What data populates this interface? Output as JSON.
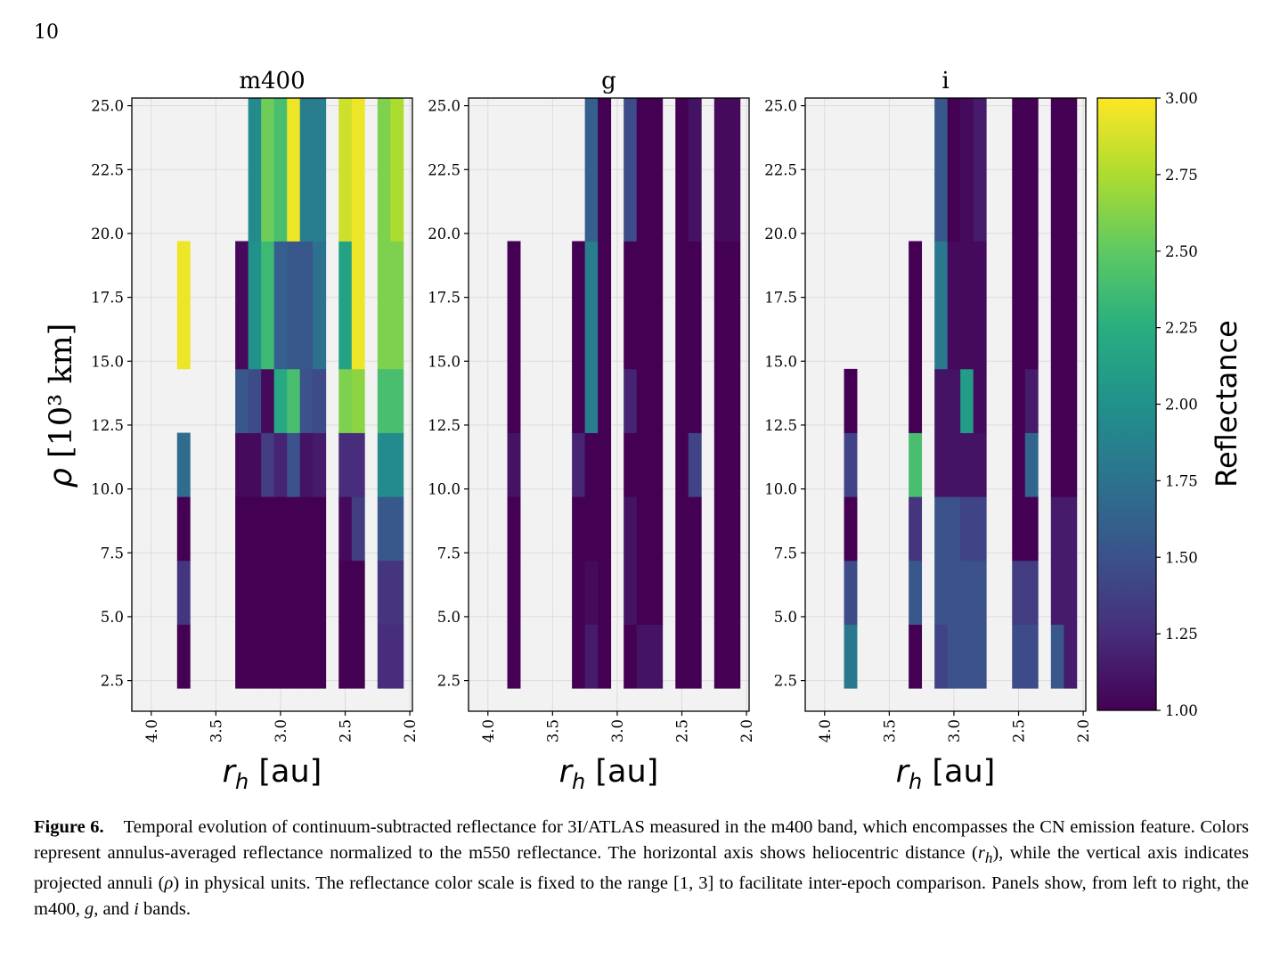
{
  "page_number": "10",
  "chart_data": {
    "type": "heatmap",
    "colorbar": {
      "label": "Reflectance",
      "min": 1.0,
      "max": 3.0,
      "ticks": [
        1.0,
        1.25,
        1.5,
        1.75,
        2.0,
        2.25,
        2.5,
        2.75,
        3.0
      ],
      "tick_labels": [
        "1.00",
        "1.25",
        "1.50",
        "1.75",
        "2.00",
        "2.25",
        "2.50",
        "2.75",
        "3.00"
      ],
      "colormap": "viridis"
    },
    "xlabel": "r_h [au]",
    "ylabel": "ρ [10³ km]",
    "x_range": [
      4.15,
      1.98
    ],
    "y_range": [
      1.3,
      25.3
    ],
    "x_ticks": [
      4.0,
      3.5,
      3.0,
      2.5,
      2.0
    ],
    "x_tick_labels": [
      "4.0",
      "3.5",
      "3.0",
      "2.5",
      "2.0"
    ],
    "y_ticks": [
      2.5,
      5.0,
      7.5,
      10.0,
      12.5,
      15.0,
      17.5,
      20.0,
      22.5,
      25.0
    ],
    "y_tick_labels": [
      "2.5",
      "5.0",
      "7.5",
      "10.0",
      "12.5",
      "15.0",
      "17.5",
      "20.0",
      "22.5",
      "25.0"
    ],
    "annuli_edges": [
      2.2,
      4.7,
      7.2,
      9.7,
      12.2,
      14.7,
      19.7,
      25.3
    ],
    "panels": [
      {
        "title": "m400",
        "columns": [
          {
            "x0": 3.8,
            "x1": 3.7,
            "values": [
              1.0,
              1.3,
              1.0,
              1.7,
              null,
              2.95,
              null
            ]
          },
          {
            "x0": 3.35,
            "x1": 3.25,
            "values": [
              1.0,
              1.0,
              1.0,
              1.05,
              1.55,
              1.05,
              null
            ]
          },
          {
            "x0": 3.25,
            "x1": 3.15,
            "values": [
              1.0,
              1.0,
              1.0,
              1.05,
              1.45,
              2.0,
              1.95
            ]
          },
          {
            "x0": 3.15,
            "x1": 3.05,
            "values": [
              1.0,
              1.0,
              1.0,
              1.35,
              1.05,
              2.35,
              2.55
            ]
          },
          {
            "x0": 3.05,
            "x1": 2.95,
            "values": [
              1.0,
              1.0,
              1.0,
              1.2,
              2.2,
              1.6,
              2.4
            ]
          },
          {
            "x0": 2.95,
            "x1": 2.85,
            "values": [
              1.0,
              1.0,
              1.0,
              1.5,
              2.4,
              1.55,
              2.95
            ]
          },
          {
            "x0": 2.85,
            "x1": 2.75,
            "values": [
              1.0,
              1.0,
              1.0,
              1.1,
              1.5,
              1.55,
              1.85
            ]
          },
          {
            "x0": 2.75,
            "x1": 2.65,
            "values": [
              1.0,
              1.0,
              1.0,
              1.15,
              1.45,
              1.75,
              1.85
            ]
          },
          {
            "x0": 2.55,
            "x1": 2.45,
            "values": [
              1.0,
              1.0,
              1.05,
              1.25,
              2.6,
              2.15,
              2.85
            ]
          },
          {
            "x0": 2.45,
            "x1": 2.35,
            "values": [
              1.0,
              1.0,
              1.35,
              1.25,
              2.65,
              2.95,
              2.95
            ]
          },
          {
            "x0": 2.25,
            "x1": 2.15,
            "values": [
              1.25,
              1.3,
              1.55,
              1.95,
              2.4,
              2.6,
              2.6
            ]
          },
          {
            "x0": 2.15,
            "x1": 2.05,
            "values": [
              1.25,
              1.3,
              1.55,
              1.95,
              2.4,
              2.6,
              2.75
            ]
          }
        ]
      },
      {
        "title": "g",
        "columns": [
          {
            "x0": 3.85,
            "x1": 3.75,
            "values": [
              1.0,
              1.0,
              1.0,
              1.1,
              1.0,
              1.0,
              null
            ]
          },
          {
            "x0": 3.35,
            "x1": 3.25,
            "values": [
              1.0,
              1.0,
              1.0,
              1.2,
              1.0,
              1.0,
              null
            ]
          },
          {
            "x0": 3.25,
            "x1": 3.15,
            "values": [
              1.15,
              1.05,
              1.0,
              1.0,
              1.85,
              1.85,
              1.6
            ]
          },
          {
            "x0": 3.15,
            "x1": 3.05,
            "values": [
              1.0,
              1.0,
              1.0,
              1.0,
              1.0,
              1.0,
              1.0
            ]
          },
          {
            "x0": 2.95,
            "x1": 2.85,
            "values": [
              1.0,
              1.1,
              1.1,
              1.0,
              1.2,
              1.0,
              1.45
            ]
          },
          {
            "x0": 2.85,
            "x1": 2.65,
            "values": [
              1.1,
              1.0,
              1.0,
              1.0,
              1.0,
              1.0,
              1.0
            ]
          },
          {
            "x0": 2.55,
            "x1": 2.45,
            "values": [
              1.0,
              1.0,
              1.0,
              1.0,
              1.0,
              1.0,
              1.0
            ]
          },
          {
            "x0": 2.45,
            "x1": 2.35,
            "values": [
              1.0,
              1.0,
              1.0,
              1.4,
              1.0,
              1.0,
              1.1
            ]
          },
          {
            "x0": 2.25,
            "x1": 2.05,
            "values": [
              1.0,
              1.0,
              1.0,
              1.0,
              1.0,
              1.0,
              1.05
            ]
          }
        ]
      },
      {
        "title": "i",
        "columns": [
          {
            "x0": 3.85,
            "x1": 3.75,
            "values": [
              1.8,
              1.45,
              1.0,
              1.4,
              1.0,
              null,
              null
            ]
          },
          {
            "x0": 3.35,
            "x1": 3.25,
            "values": [
              1.0,
              1.55,
              1.3,
              2.4,
              1.0,
              1.0,
              null
            ]
          },
          {
            "x0": 3.15,
            "x1": 3.05,
            "values": [
              1.4,
              1.5,
              1.5,
              1.1,
              1.1,
              1.8,
              1.55
            ]
          },
          {
            "x0": 3.05,
            "x1": 2.95,
            "values": [
              1.5,
              1.5,
              1.5,
              1.1,
              1.1,
              1.05,
              1.0
            ]
          },
          {
            "x0": 2.95,
            "x1": 2.85,
            "values": [
              1.5,
              1.5,
              1.4,
              1.1,
              2.1,
              1.05,
              1.05
            ]
          },
          {
            "x0": 2.85,
            "x1": 2.75,
            "values": [
              1.5,
              1.5,
              1.4,
              1.1,
              1.05,
              1.05,
              1.15
            ]
          },
          {
            "x0": 2.55,
            "x1": 2.45,
            "values": [
              1.45,
              1.35,
              1.0,
              1.0,
              1.0,
              1.0,
              1.0
            ]
          },
          {
            "x0": 2.45,
            "x1": 2.35,
            "values": [
              1.45,
              1.35,
              1.0,
              1.65,
              1.15,
              1.0,
              1.0
            ]
          },
          {
            "x0": 2.25,
            "x1": 2.15,
            "values": [
              1.55,
              1.15,
              1.15,
              1.0,
              1.0,
              1.0,
              1.0
            ]
          },
          {
            "x0": 2.15,
            "x1": 2.05,
            "values": [
              1.15,
              1.15,
              1.15,
              1.0,
              1.0,
              1.0,
              1.0
            ]
          }
        ]
      }
    ]
  },
  "caption": {
    "label": "Figure 6.",
    "part1": "Temporal evolution of continuum-subtracted reflectance for 3I/ATLAS measured in the m400 band, which encompasses the CN emission feature. Colors represent annulus-averaged reflectance normalized to the m550 reflectance. The horizontal axis shows heliocentric distance (",
    "rh": "r",
    "rh_sub": "h",
    "part2": "), while the vertical axis indicates projected annuli (",
    "rho": "ρ",
    "part3": ") in physical units. The reflectance color scale is fixed to the range [1, 3] to facilitate inter-epoch comparison. Panels show, from left to right, the m400, ",
    "g": "g",
    "part4": ", and ",
    "i": "i",
    "part5": " bands."
  }
}
